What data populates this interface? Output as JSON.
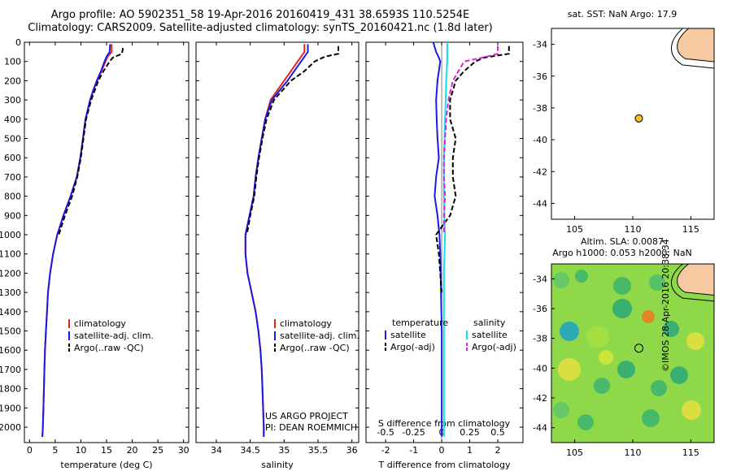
{
  "header": {
    "line1": "Argo profile: AO 5902351_58 19-Apr-2016 20160419_431 38.6593S 110.5254E",
    "line2": "Climatology: CARS2009. Satellite-adjusted climatology: synTS_20160421.nc (1.8d later)"
  },
  "side": {
    "sst_title": "sat. SST: NaN Argo: 17.9",
    "sla_line1": "Altim. SLA: 0.0087",
    "sla_line2": "Argo h1000: 0.053 h2000: NaN",
    "stamp": "©IMOS 28-Apr-2016 20:38:34"
  },
  "colors": {
    "climatology": "#e8201e",
    "satellite": "#1a1ae6",
    "argo": "#000000",
    "salinity_sat": "#10e0f0",
    "salinity_argo": "#e020e0",
    "land": "#f7c9a0"
  },
  "chart_data": [
    {
      "type": "line",
      "name": "temperature",
      "xlabel": "temperature (deg C)",
      "ylabel": "",
      "xlim": [
        -1,
        31
      ],
      "ylim": [
        2080,
        0
      ],
      "xticks": [
        0,
        5,
        10,
        15,
        20,
        25,
        30
      ],
      "yticks": [
        0,
        100,
        200,
        300,
        400,
        500,
        600,
        700,
        800,
        900,
        1000,
        1100,
        1200,
        1300,
        1400,
        1500,
        1600,
        1700,
        1800,
        1900,
        2000
      ],
      "legend": [
        "climatology",
        "satellite-adj. clim.",
        "Argo(..raw -QC)"
      ],
      "series": [
        {
          "name": "climatology",
          "depth": [
            10,
            50,
            75,
            100,
            150,
            200,
            250,
            300,
            400,
            500,
            600,
            700,
            800,
            900,
            1000,
            1100,
            1200,
            1300,
            1400,
            1500,
            1600,
            1700,
            1800,
            1900,
            2000,
            2050
          ],
          "values": [
            16.0,
            16.0,
            15.2,
            14.8,
            14.0,
            13.2,
            12.4,
            11.8,
            10.9,
            10.4,
            9.9,
            9.2,
            8.0,
            6.6,
            5.4,
            4.6,
            4.0,
            3.6,
            3.4,
            3.2,
            3.0,
            2.9,
            2.8,
            2.7,
            2.6,
            2.5
          ]
        },
        {
          "name": "satellite-adj. clim.",
          "depth": [
            10,
            50,
            75,
            100,
            150,
            200,
            250,
            300,
            400,
            500,
            600,
            700,
            800,
            900,
            1000,
            1100,
            1200,
            1300,
            1400,
            1500,
            1600,
            1700,
            1800,
            1900,
            2000,
            2050
          ],
          "values": [
            15.7,
            15.6,
            15.0,
            14.6,
            13.9,
            13.1,
            12.4,
            11.8,
            10.9,
            10.4,
            9.9,
            9.2,
            8.0,
            6.6,
            5.4,
            4.6,
            4.0,
            3.6,
            3.4,
            3.2,
            3.0,
            2.9,
            2.8,
            2.7,
            2.6,
            2.5
          ]
        },
        {
          "name": "Argo(..raw -QC)",
          "depth": [
            30,
            60,
            80,
            100,
            150,
            200,
            250,
            300,
            400,
            500,
            600,
            700,
            800,
            900,
            1000
          ],
          "values": [
            18.2,
            18.0,
            16.2,
            15.6,
            14.4,
            13.4,
            12.7,
            12.0,
            11.0,
            10.5,
            10.0,
            9.3,
            8.3,
            6.9,
            5.7
          ]
        }
      ]
    },
    {
      "type": "line",
      "name": "salinity",
      "xlabel": "salinity",
      "ylabel": "",
      "xlim": [
        33.7,
        36.1
      ],
      "ylim": [
        2080,
        0
      ],
      "xticks": [
        34,
        34.5,
        35,
        35.5,
        36
      ],
      "legend": [
        "climatology",
        "satellite-adj. clim.",
        "Argo(..raw -QC)"
      ],
      "annotation": [
        "US ARGO PROJECT",
        "PI: DEAN ROEMMICH"
      ],
      "series": [
        {
          "name": "climatology",
          "depth": [
            10,
            50,
            100,
            150,
            200,
            300,
            400,
            500,
            600,
            700,
            800,
            900,
            1000,
            1100,
            1200,
            1300,
            1400,
            1500,
            1600,
            1700,
            1800,
            1900,
            2000,
            2050
          ],
          "values": [
            35.3,
            35.3,
            35.2,
            35.1,
            35.0,
            34.8,
            34.72,
            34.67,
            34.62,
            34.58,
            34.55,
            34.49,
            34.43,
            34.43,
            34.46,
            34.52,
            34.58,
            34.62,
            34.65,
            34.67,
            34.68,
            34.69,
            34.7,
            34.7
          ]
        },
        {
          "name": "satellite-adj. clim.",
          "depth": [
            10,
            50,
            100,
            150,
            200,
            300,
            400,
            500,
            600,
            700,
            800,
            900,
            1000,
            1100,
            1200,
            1300,
            1400,
            1500,
            1600,
            1700,
            1800,
            1900,
            2000,
            2050
          ],
          "values": [
            35.35,
            35.35,
            35.25,
            35.15,
            35.05,
            34.82,
            34.72,
            34.67,
            34.62,
            34.58,
            34.55,
            34.49,
            34.43,
            34.43,
            34.46,
            34.52,
            34.58,
            34.62,
            34.65,
            34.67,
            34.68,
            34.69,
            34.7,
            34.7
          ]
        },
        {
          "name": "Argo(..raw -QC)",
          "depth": [
            20,
            60,
            75,
            100,
            150,
            200,
            300,
            400,
            500,
            600,
            700,
            800,
            900,
            1000
          ],
          "values": [
            35.8,
            35.8,
            35.6,
            35.45,
            35.3,
            35.1,
            34.85,
            34.74,
            34.68,
            34.63,
            34.59,
            34.56,
            34.5,
            34.45
          ]
        }
      ]
    },
    {
      "type": "line",
      "name": "difference",
      "xlabel": "T difference from climatology",
      "x2label": "S difference from climatology",
      "xlim": [
        -2.7,
        2.9
      ],
      "x2lim": [
        -0.675,
        0.725
      ],
      "ylim": [
        2080,
        0
      ],
      "xticks": [
        -2,
        -1,
        0,
        1,
        2
      ],
      "x2ticks": [
        -0.5,
        -0.25,
        0,
        0.25,
        0.5
      ],
      "legend_headers": [
        "temperature",
        "salinity"
      ],
      "legend": [
        "satellite",
        "Argo(-adj)",
        "satellite",
        "Argo(-adj)"
      ],
      "series": [
        {
          "name": "temperature satellite",
          "depth": [
            0,
            50,
            80,
            100,
            150,
            200,
            300,
            400,
            500,
            600,
            700,
            800,
            900,
            1000,
            1100,
            1500,
            2050
          ],
          "values": [
            -0.3,
            -0.2,
            -0.1,
            -0.05,
            -0.1,
            -0.15,
            -0.2,
            -0.18,
            -0.15,
            -0.1,
            -0.2,
            -0.25,
            -0.15,
            -0.08,
            -0.05,
            0,
            0
          ]
        },
        {
          "name": "temperature Argo(-adj)",
          "depth": [
            20,
            60,
            80,
            100,
            150,
            200,
            250,
            300,
            400,
            500,
            600,
            700,
            800,
            900,
            1000,
            1100,
            1200,
            1300
          ],
          "values": [
            2.4,
            2.4,
            1.5,
            1.2,
            0.8,
            0.5,
            0.4,
            0.3,
            0.3,
            0.5,
            0.4,
            0.4,
            0.5,
            0.3,
            -0.2,
            -0.1,
            -0.05,
            0
          ]
        },
        {
          "name": "salinity satellite",
          "depth": [
            0,
            100,
            200,
            400,
            600,
            800,
            1000,
            1200,
            1500,
            2050
          ],
          "values": [
            0.05,
            0.05,
            0.04,
            0.03,
            0.02,
            0.02,
            0.03,
            0.02,
            0.02,
            0.02
          ]
        },
        {
          "name": "salinity Argo(-adj)",
          "depth": [
            20,
            60,
            75,
            100,
            150,
            200,
            300,
            400,
            500,
            600,
            700,
            800,
            900,
            1000
          ],
          "values": [
            0.5,
            0.5,
            0.4,
            0.2,
            0.15,
            0.1,
            0.06,
            0.04,
            0.03,
            0.02,
            0.02,
            0.03,
            0.02,
            0.02
          ]
        }
      ]
    },
    {
      "type": "scatter",
      "name": "sst-map",
      "title": "sat. SST: NaN Argo: 17.9",
      "xlim": [
        103,
        117
      ],
      "ylim": [
        -45,
        -33
      ],
      "xticks": [
        105,
        110,
        115
      ],
      "yticks": [
        -34,
        -36,
        -38,
        -40,
        -42,
        -44
      ],
      "points": [
        {
          "lon": 110.5254,
          "lat": -38.6593
        }
      ]
    },
    {
      "type": "heatmap",
      "name": "sla-map",
      "title": "Altim. SLA: 0.0087",
      "xlim": [
        103,
        117
      ],
      "ylim": [
        -45,
        -33
      ],
      "xticks": [
        105,
        110,
        115
      ],
      "yticks": [
        -34,
        -36,
        -38,
        -40,
        -42,
        -44
      ],
      "points": [
        {
          "lon": 110.5254,
          "lat": -38.6593
        }
      ]
    }
  ]
}
